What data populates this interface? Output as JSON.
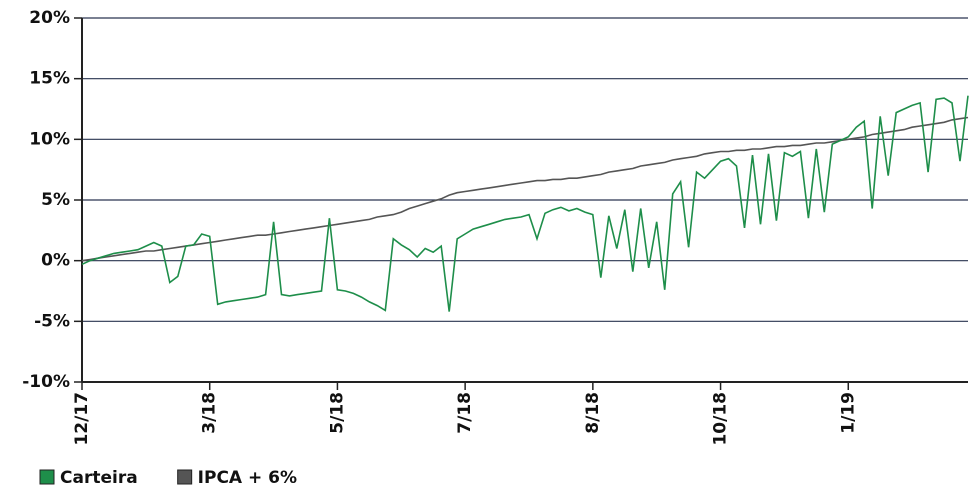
{
  "chart_data": {
    "type": "line",
    "categories": [
      "12/17",
      null,
      null,
      null,
      null,
      null,
      null,
      null,
      null,
      null,
      null,
      null,
      null,
      null,
      null,
      null,
      "3/18",
      null,
      null,
      null,
      null,
      null,
      null,
      null,
      null,
      null,
      null,
      null,
      null,
      null,
      null,
      null,
      "5/18",
      null,
      null,
      null,
      null,
      null,
      null,
      null,
      null,
      null,
      null,
      null,
      null,
      null,
      null,
      null,
      "7/18",
      null,
      null,
      null,
      null,
      null,
      null,
      null,
      null,
      null,
      null,
      null,
      null,
      null,
      null,
      null,
      "8/18",
      null,
      null,
      null,
      null,
      null,
      null,
      null,
      null,
      null,
      null,
      null,
      null,
      null,
      null,
      null,
      "10/18",
      null,
      null,
      null,
      null,
      null,
      null,
      null,
      null,
      null,
      null,
      null,
      null,
      null,
      null,
      null,
      "1/19",
      null,
      null,
      null,
      null,
      null,
      null,
      null,
      null,
      null,
      null,
      null,
      null,
      null,
      null,
      null
    ],
    "series": [
      {
        "name": "Carteira",
        "color": "#1e8e4a",
        "values": [
          -0.3,
          0,
          0.2,
          0.4,
          0.6,
          0.7,
          0.8,
          0.9,
          1.2,
          1.5,
          1.2,
          -1.8,
          -1.3,
          1.2,
          1.3,
          2.2,
          2.0,
          -3.6,
          -3.4,
          -3.3,
          -3.2,
          -3.1,
          -3.0,
          -2.8,
          3.2,
          -2.8,
          -2.9,
          -2.8,
          -2.7,
          -2.6,
          -2.5,
          3.5,
          -2.4,
          -2.5,
          -2.7,
          -3.0,
          -3.4,
          -3.7,
          -4.1,
          1.8,
          1.3,
          0.9,
          0.3,
          1.0,
          0.7,
          1.2,
          -4.2,
          1.8,
          2.2,
          2.6,
          2.8,
          3.0,
          3.2,
          3.4,
          3.5,
          3.6,
          3.8,
          1.8,
          3.9,
          4.2,
          4.4,
          4.1,
          4.3,
          4.0,
          3.8,
          -1.4,
          3.7,
          1.0,
          4.2,
          -0.9,
          4.3,
          -0.6,
          3.2,
          -2.4,
          5.5,
          6.5,
          1.1,
          7.3,
          6.8,
          7.5,
          8.2,
          8.4,
          7.8,
          2.7,
          8.7,
          3.0,
          8.8,
          3.3,
          8.9,
          8.6,
          9.0,
          3.5,
          9.2,
          4.0,
          9.6,
          9.9,
          10.2,
          11.0,
          11.5,
          4.3,
          11.9,
          7.0,
          12.2,
          12.5,
          12.8,
          13.0,
          7.3,
          13.3,
          13.4,
          13.0,
          8.2,
          13.6
        ]
      },
      {
        "name": "IPCA + 6%",
        "color": "#555555",
        "values": [
          0,
          0.1,
          0.2,
          0.3,
          0.4,
          0.5,
          0.6,
          0.7,
          0.8,
          0.8,
          0.9,
          1.0,
          1.1,
          1.2,
          1.3,
          1.4,
          1.5,
          1.6,
          1.7,
          1.8,
          1.9,
          2.0,
          2.1,
          2.1,
          2.2,
          2.3,
          2.4,
          2.5,
          2.6,
          2.7,
          2.8,
          2.9,
          3.0,
          3.1,
          3.2,
          3.3,
          3.4,
          3.6,
          3.7,
          3.8,
          4.0,
          4.3,
          4.5,
          4.7,
          4.9,
          5.1,
          5.4,
          5.6,
          5.7,
          5.8,
          5.9,
          6.0,
          6.1,
          6.2,
          6.3,
          6.4,
          6.5,
          6.6,
          6.6,
          6.7,
          6.7,
          6.8,
          6.8,
          6.9,
          7.0,
          7.1,
          7.3,
          7.4,
          7.5,
          7.6,
          7.8,
          7.9,
          8.0,
          8.1,
          8.3,
          8.4,
          8.5,
          8.6,
          8.8,
          8.9,
          9.0,
          9.0,
          9.1,
          9.1,
          9.2,
          9.2,
          9.3,
          9.4,
          9.4,
          9.5,
          9.5,
          9.6,
          9.7,
          9.7,
          9.8,
          9.9,
          10.0,
          10.1,
          10.2,
          10.4,
          10.5,
          10.6,
          10.7,
          10.8,
          11.0,
          11.1,
          11.2,
          11.3,
          11.4,
          11.6,
          11.7,
          11.8
        ]
      }
    ],
    "ylim": [
      -10,
      20
    ],
    "yticks": [
      {
        "value": -10,
        "label": "-10%"
      },
      {
        "value": -5,
        "label": "-5%"
      },
      {
        "value": 0,
        "label": "0%"
      },
      {
        "value": 5,
        "label": "5%"
      },
      {
        "value": 10,
        "label": "10%"
      },
      {
        "value": 15,
        "label": "15%"
      },
      {
        "value": 20,
        "label": "20%"
      }
    ],
    "grid": true,
    "legend": "bottom-left"
  }
}
